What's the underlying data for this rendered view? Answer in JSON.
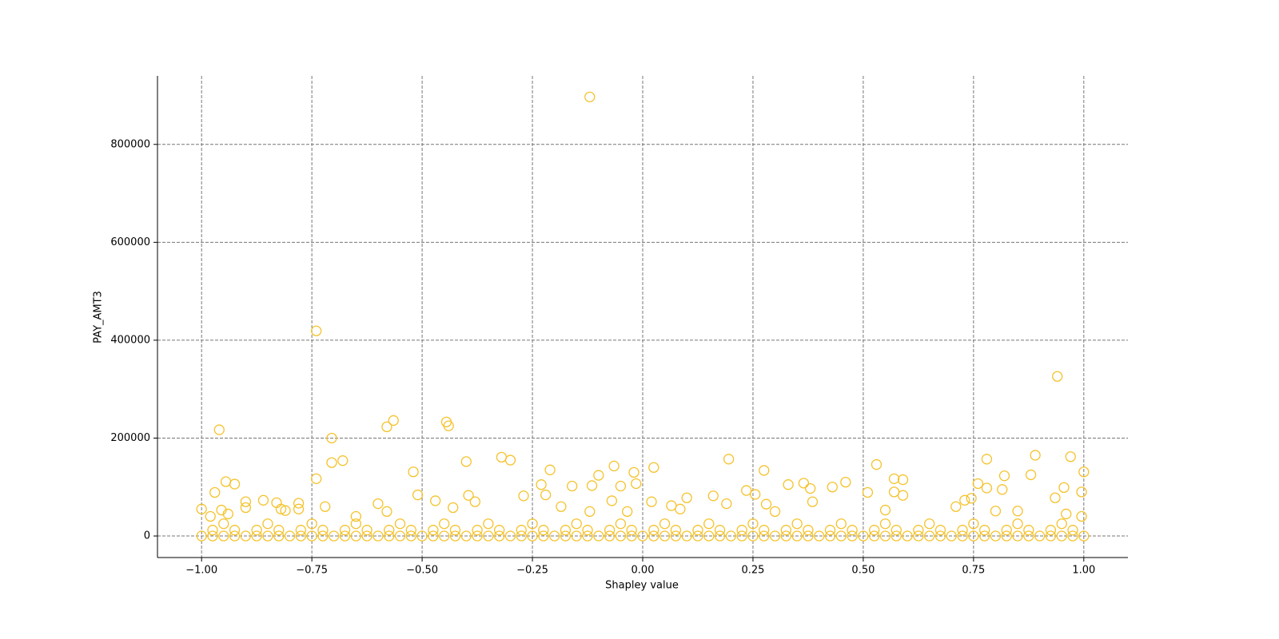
{
  "chart_data": {
    "type": "scatter",
    "x_label": "Shapley value",
    "y_label": "PAY_AMT3",
    "color": "#f5c22a",
    "grid": true,
    "xlim": [
      -1.1,
      1.1
    ],
    "ylim": [
      -44000,
      940000
    ],
    "xticks": [
      {
        "value": -1,
        "label": "−1.00"
      },
      {
        "value": -0.75,
        "label": "−0.75"
      },
      {
        "value": -0.5,
        "label": "−0.50"
      },
      {
        "value": -0.25,
        "label": "−0.25"
      },
      {
        "value": 0,
        "label": "0.00"
      },
      {
        "value": 0.25,
        "label": "0.25"
      },
      {
        "value": 0.5,
        "label": "0.50"
      },
      {
        "value": 0.75,
        "label": "0.75"
      },
      {
        "value": 1,
        "label": "1.00"
      }
    ],
    "yticks": [
      0,
      200000,
      400000,
      600000,
      800000
    ],
    "x": [
      -0.12,
      -0.74,
      0.94,
      -0.96,
      -0.565,
      -0.445,
      -0.44,
      -0.58,
      -0.705,
      -0.705,
      -0.68,
      -0.52,
      -0.4,
      -0.32,
      -0.3,
      -0.21,
      -0.065,
      -0.02,
      0.025,
      0.195,
      0.275,
      0.53,
      0.57,
      0.59,
      0.78,
      0.82,
      0.88,
      0.89,
      0.97,
      1.0,
      -0.74,
      -0.945,
      -0.925,
      -0.97,
      -0.16,
      -0.23,
      -0.115,
      -0.1,
      -0.05,
      -0.015,
      0.33,
      0.365,
      0.46,
      0.51,
      0.57,
      0.76,
      0.78,
      0.815,
      0.955,
      0.995,
      -1.0,
      -0.98,
      -0.955,
      -0.94,
      -0.9,
      -0.9,
      -0.86,
      -0.83,
      -0.82,
      -0.81,
      -0.78,
      -0.78,
      -0.72,
      -0.6,
      -0.58,
      -0.51,
      -0.47,
      -0.43,
      -0.395,
      -0.38,
      -0.27,
      -0.22,
      -0.185,
      -0.12,
      -0.07,
      -0.035,
      0.02,
      0.065,
      0.085,
      0.1,
      0.16,
      0.19,
      0.235,
      0.255,
      0.28,
      0.38,
      0.385,
      0.43,
      0.55,
      0.59,
      0.71,
      0.73,
      0.745,
      0.8,
      0.85,
      0.935,
      0.96,
      0.995,
      -0.65,
      0.3,
      -1.0,
      -0.975,
      -0.95,
      -0.925,
      -0.9,
      -0.875,
      -0.85,
      -0.825,
      -0.8,
      -0.775,
      -0.75,
      -0.725,
      -0.7,
      -0.675,
      -0.65,
      -0.625,
      -0.6,
      -0.575,
      -0.55,
      -0.525,
      -0.5,
      -0.475,
      -0.45,
      -0.425,
      -0.4,
      -0.375,
      -0.35,
      -0.325,
      -0.3,
      -0.275,
      -0.25,
      -0.225,
      -0.2,
      -0.175,
      -0.15,
      -0.125,
      -0.1,
      -0.075,
      -0.05,
      -0.025,
      0.0,
      0.025,
      0.05,
      0.075,
      0.1,
      0.125,
      0.15,
      0.175,
      0.2,
      0.225,
      0.25,
      0.275,
      0.3,
      0.325,
      0.35,
      0.375,
      0.4,
      0.425,
      0.45,
      0.475,
      0.5,
      0.525,
      0.55,
      0.575,
      0.6,
      0.625,
      0.65,
      0.675,
      0.7,
      0.725,
      0.75,
      0.775,
      0.8,
      0.825,
      0.85,
      0.875,
      0.9,
      0.925,
      0.95,
      0.975,
      1.0,
      -0.975,
      -0.925,
      -0.875,
      -0.825,
      -0.775,
      -0.725,
      -0.675,
      -0.625,
      -0.575,
      -0.525,
      -0.475,
      -0.425,
      -0.375,
      -0.325,
      -0.275,
      -0.225,
      -0.175,
      -0.125,
      -0.075,
      -0.025,
      0.025,
      0.075,
      0.125,
      0.175,
      0.225,
      0.275,
      0.325,
      0.375,
      0.425,
      0.475,
      0.525,
      0.575,
      0.625,
      0.675,
      0.725,
      0.775,
      0.825,
      0.875,
      0.925,
      0.975,
      -0.95,
      -0.85,
      -0.75,
      -0.65,
      -0.55,
      -0.45,
      -0.35,
      -0.25,
      -0.15,
      -0.05,
      0.05,
      0.15,
      0.25,
      0.35,
      0.45,
      0.55,
      0.65,
      0.75,
      0.85,
      0.95
    ],
    "values": [
      897000,
      419000,
      326000,
      217000,
      236000,
      233000,
      225000,
      223000,
      200000,
      150000,
      154000,
      131000,
      152000,
      161000,
      155000,
      135000,
      143000,
      130000,
      140000,
      157000,
      134000,
      146000,
      117000,
      115000,
      157000,
      123000,
      125000,
      165000,
      162000,
      131000,
      117000,
      111000,
      106000,
      89000,
      102000,
      105000,
      103000,
      124000,
      102000,
      107000,
      105000,
      108000,
      110000,
      89000,
      90000,
      107000,
      98000,
      95000,
      99000,
      90000,
      55000,
      40000,
      53000,
      45000,
      70000,
      58000,
      73000,
      68000,
      55000,
      52000,
      67000,
      55000,
      60000,
      66000,
      50000,
      84000,
      72000,
      58000,
      83000,
      70000,
      82000,
      84000,
      60000,
      50000,
      72000,
      50000,
      70000,
      62000,
      55000,
      78000,
      82000,
      66000,
      93000,
      85000,
      65000,
      97000,
      70000,
      100000,
      53000,
      83000,
      60000,
      73000,
      77000,
      51000,
      51000,
      78000,
      45000,
      40000,
      40000,
      50000,
      0,
      0,
      0,
      0,
      0,
      0,
      0,
      0,
      0,
      0,
      0,
      0,
      0,
      0,
      0,
      0,
      0,
      0,
      0,
      0,
      0,
      0,
      0,
      0,
      0,
      0,
      0,
      0,
      0,
      0,
      0,
      0,
      0,
      0,
      0,
      0,
      0,
      0,
      0,
      0,
      0,
      0,
      0,
      0,
      0,
      0,
      0,
      0,
      0,
      0,
      0,
      0,
      0,
      0,
      0,
      0,
      0,
      0,
      0,
      0,
      0,
      0,
      0,
      0,
      0,
      0,
      0,
      0,
      0,
      0,
      0,
      0,
      0,
      0,
      0,
      0,
      0,
      0,
      0,
      0,
      0,
      12000,
      12000,
      12000,
      12000,
      12000,
      12000,
      12000,
      12000,
      12000,
      12000,
      12000,
      12000,
      12000,
      12000,
      12000,
      12000,
      12000,
      12000,
      12000,
      12000,
      12000,
      12000,
      12000,
      12000,
      12000,
      12000,
      12000,
      12000,
      12000,
      12000,
      12000,
      12000,
      12000,
      12000,
      12000,
      12000,
      12000,
      12000,
      12000,
      12000,
      25000,
      25000,
      25000,
      25000,
      25000,
      25000,
      25000,
      25000,
      25000,
      25000,
      25000,
      25000,
      25000,
      25000,
      25000,
      25000,
      25000,
      25000,
      25000,
      25000
    ]
  }
}
